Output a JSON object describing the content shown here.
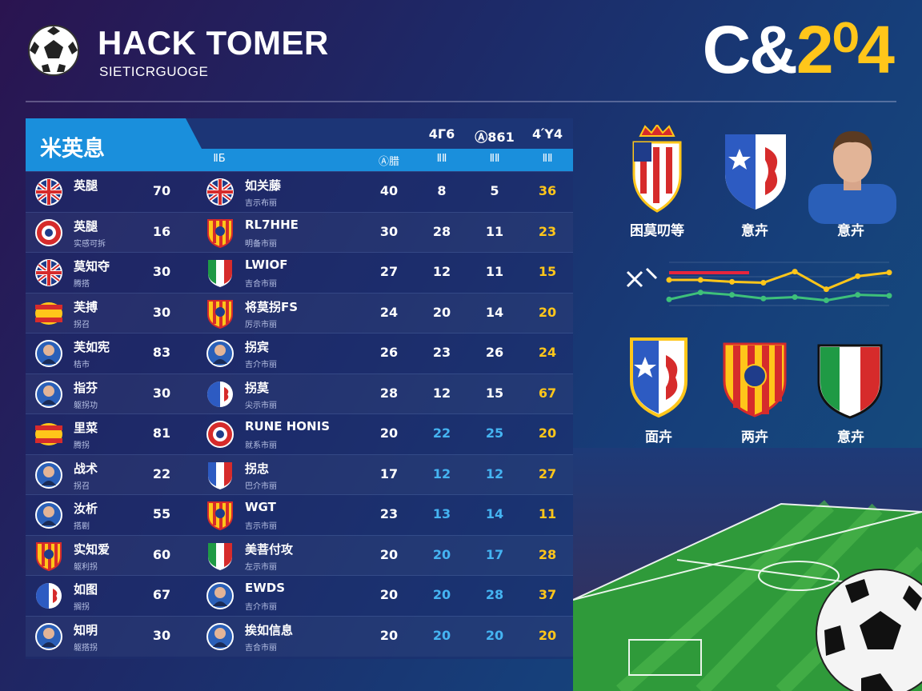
{
  "header": {
    "title": "HACK TOMER",
    "subtitle": "SIETICRGUOGE",
    "season_prefix": "C&",
    "season_suffix": "2⁰4",
    "logo_icon": "football-icon"
  },
  "table": {
    "title": "米英息",
    "columns_top": [
      "4Γ6",
      "Ⓐ861",
      "4Ύ4"
    ],
    "columns_sub": [
      "ⅡБ",
      "Ⓐ腊",
      "ⅡⅡ",
      "ⅡⅡ",
      "ⅡⅡ"
    ],
    "rows": [
      {
        "team": "英腿",
        "sub": "",
        "icon": "flag-uk-icon",
        "num": "70",
        "opponent": "如关藤",
        "opp_sub": "吉示布丽",
        "opp_icon": "flag-uk-icon",
        "values": [
          "40",
          "8",
          "5",
          "36"
        ]
      },
      {
        "team": "英腿",
        "sub": "实感可拆",
        "icon": "club-badge-icon",
        "num": "16",
        "opponent": "RL7HHE",
        "opp_sub": "明备市丽",
        "opp_icon": "shield-red-yellow-icon",
        "values": [
          "30",
          "28",
          "11",
          "23"
        ]
      },
      {
        "team": "莫知夺",
        "sub": "腾搭",
        "icon": "flag-uk-icon",
        "num": "30",
        "opponent": "LWIOF",
        "opp_sub": "吉合市丽",
        "opp_icon": "shield-italy-icon",
        "values": [
          "27",
          "12",
          "11",
          "15"
        ]
      },
      {
        "team": "芙搏",
        "sub": "拐召",
        "icon": "flag-spain-icon",
        "num": "30",
        "opponent": "将莫拐FS",
        "opp_sub": "厉示市丽",
        "opp_icon": "shield-red-yellow-icon",
        "values": [
          "24",
          "20",
          "14",
          "20"
        ]
      },
      {
        "team": "芙如宪",
        "sub": "桔市",
        "icon": "player-avatar-icon",
        "num": "83",
        "opponent": "拐宾",
        "opp_sub": "吉介市丽",
        "opp_icon": "player-avatar-icon",
        "values": [
          "26",
          "23",
          "26",
          "24"
        ]
      },
      {
        "team": "指芬",
        "sub": "躯拐功",
        "icon": "player-avatar-icon",
        "num": "30",
        "opponent": "拐莫",
        "opp_sub": "尖示市丽",
        "opp_icon": "shield-blue-white-icon",
        "values": [
          "28",
          "12",
          "15",
          "67"
        ]
      },
      {
        "team": "里菜",
        "sub": "腾拐",
        "icon": "flag-spain-icon",
        "num": "81",
        "opponent": "RUNE HONIS",
        "opp_sub": "就系市丽",
        "opp_icon": "club-badge-icon",
        "values": [
          "20",
          "22",
          "25",
          "20"
        ]
      },
      {
        "team": "战术",
        "sub": "拐召",
        "icon": "player-avatar-icon",
        "num": "22",
        "opponent": "拐忠",
        "opp_sub": "巴介市丽",
        "opp_icon": "shield-france-icon",
        "values": [
          "17",
          "12",
          "12",
          "27"
        ]
      },
      {
        "team": "汝析",
        "sub": "搭剧",
        "icon": "player-avatar-icon",
        "num": "55",
        "opponent": "WGT",
        "opp_sub": "吉示市丽",
        "opp_icon": "shield-red-yellow-icon",
        "values": [
          "23",
          "13",
          "14",
          "11"
        ]
      },
      {
        "team": "实知爱",
        "sub": "躯利拐",
        "icon": "shield-red-yellow-icon",
        "num": "60",
        "opponent": "美菩付攻",
        "opp_sub": "左示市丽",
        "opp_icon": "shield-italy-icon",
        "values": [
          "20",
          "20",
          "17",
          "28"
        ]
      },
      {
        "team": "如图",
        "sub": "搁拐",
        "icon": "shield-blue-white-icon",
        "num": "67",
        "opponent": "EWDS",
        "opp_sub": "吉介市丽",
        "opp_icon": "player-avatar-icon",
        "values": [
          "20",
          "20",
          "28",
          "37"
        ]
      },
      {
        "team": "知明",
        "sub": "躯搭拐",
        "icon": "player-avatar-icon",
        "num": "30",
        "opponent": "挨如信息",
        "opp_sub": "吉合市丽",
        "opp_icon": "player-avatar-icon",
        "values": [
          "20",
          "20",
          "20",
          "20"
        ]
      }
    ]
  },
  "featured_top": [
    {
      "label": "困莫叨等",
      "icon": "crown-crest-icon"
    },
    {
      "label": "意卉",
      "icon": "shield-blue-white-icon"
    },
    {
      "label": "意卉",
      "icon": "player-portrait-icon"
    }
  ],
  "featured_bottom": [
    {
      "label": "面卉",
      "icon": "shield-blue-white-icon"
    },
    {
      "label": "两卉",
      "icon": "shield-red-yellow-icon"
    },
    {
      "label": "意卉",
      "icon": "shield-italy-icon"
    }
  ],
  "chart_data": {
    "type": "line",
    "title": "",
    "legend_icon": "chart-legend-icon",
    "series": [
      {
        "values": [
          0.62,
          0.62,
          0.58,
          0.56,
          0.8,
          0.42,
          0.7,
          0.78
        ]
      },
      {
        "values": [
          0.2,
          0.35,
          0.3,
          0.22,
          0.25,
          0.18,
          0.3,
          0.28
        ]
      }
    ],
    "colors": [
      "#e8243c",
      "#ffc61a",
      "#3ec07a"
    ]
  },
  "colors": {
    "accent_blue": "#1a8fdc",
    "gold": "#ffc61a",
    "stat_blue": "#45b4f2"
  }
}
